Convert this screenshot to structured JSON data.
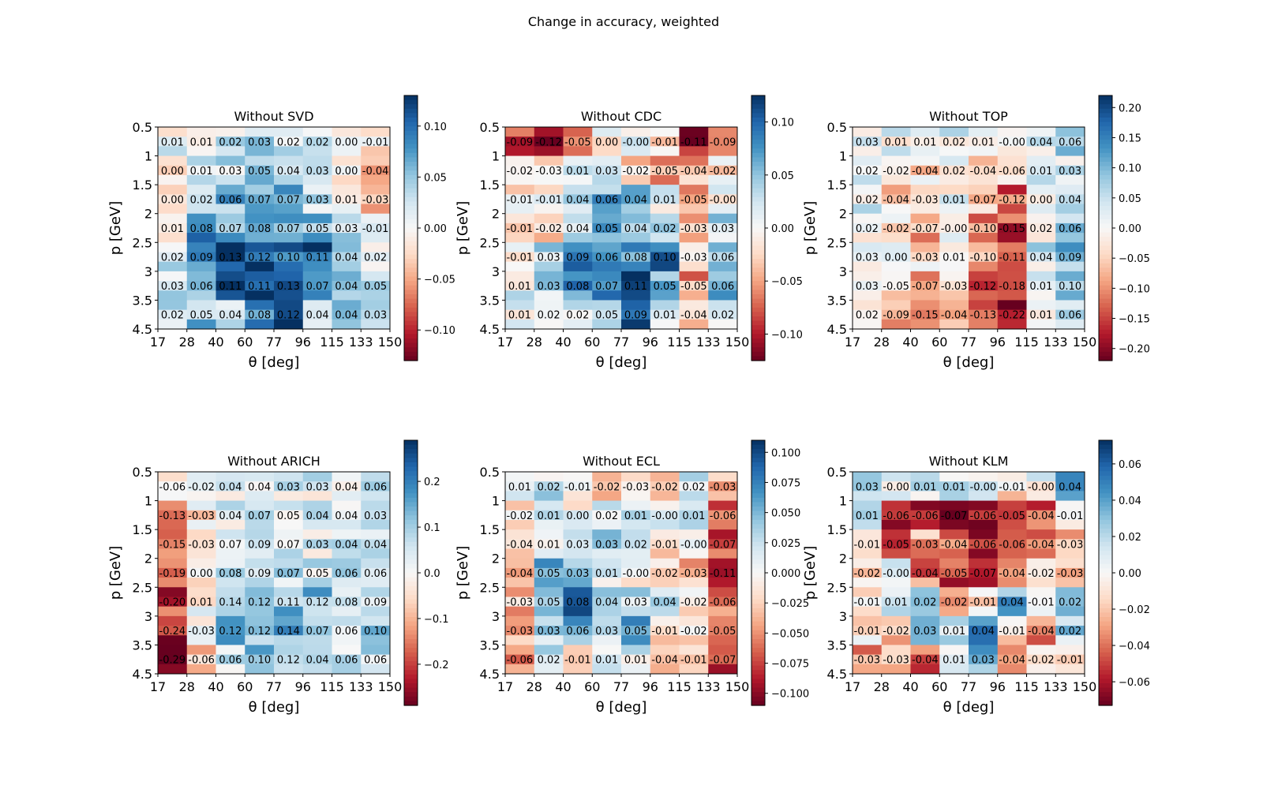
{
  "figure_title": "Change in accuracy, weighted",
  "chart_data": [
    {
      "type": "heatmap",
      "title": "Without SVD",
      "xlabel": "θ [deg]",
      "ylabel": "p [GeV]",
      "x_ticks": [
        "17",
        "28",
        "40",
        "60",
        "77",
        "96",
        "115",
        "133",
        "150"
      ],
      "y_ticks": [
        "0.5",
        "1",
        "1.5",
        "2",
        "2.5",
        "3",
        "3.5",
        "4.5"
      ],
      "values": [
        [
          0.01,
          0.01,
          0.02,
          0.03,
          0.02,
          0.02,
          0.0,
          -0.01
        ],
        [
          0.0,
          0.01,
          0.03,
          0.05,
          0.04,
          0.03,
          0.0,
          -0.04
        ],
        [
          0.0,
          0.02,
          0.06,
          0.07,
          0.07,
          0.03,
          0.01,
          -0.03
        ],
        [
          0.01,
          0.08,
          0.07,
          0.08,
          0.07,
          0.05,
          0.03,
          -0.01
        ],
        [
          0.02,
          0.09,
          0.13,
          0.12,
          0.1,
          0.11,
          0.04,
          0.02
        ],
        [
          0.03,
          0.06,
          0.11,
          0.11,
          0.13,
          0.07,
          0.04,
          0.05
        ],
        [
          0.02,
          0.05,
          0.04,
          0.08,
          0.12,
          0.04,
          0.04,
          0.03
        ]
      ],
      "labels": [
        [
          "0.01",
          "0.01",
          "0.02",
          "0.03",
          "0.02",
          "0.02",
          "0.00",
          "-0.01"
        ],
        [
          "0.00",
          "0.01",
          "0.03",
          "0.05",
          "0.04",
          "0.03",
          "0.00",
          "-0.04"
        ],
        [
          "0.00",
          "0.02",
          "0.06",
          "0.07",
          "0.07",
          "0.03",
          "0.01",
          "-0.03"
        ],
        [
          "0.01",
          "0.08",
          "0.07",
          "0.08",
          "0.07",
          "0.05",
          "0.03",
          "-0.01"
        ],
        [
          "0.02",
          "0.09",
          "0.13",
          "0.12",
          "0.10",
          "0.11",
          "0.04",
          "0.02"
        ],
        [
          "0.03",
          "0.06",
          "0.11",
          "0.11",
          "0.13",
          "0.07",
          "0.04",
          "0.05"
        ],
        [
          "0.02",
          "0.05",
          "0.04",
          "0.08",
          "0.12",
          "0.04",
          "0.04",
          "0.03"
        ]
      ],
      "vlim": [
        -0.13,
        0.13
      ],
      "cbar_ticks": [
        -0.1,
        -0.05,
        0.0,
        0.05,
        0.1
      ],
      "cbar_labels": [
        "−0.10",
        "−0.05",
        "0.00",
        "0.05",
        "0.10"
      ]
    },
    {
      "type": "heatmap",
      "title": "Without CDC",
      "xlabel": "θ [deg]",
      "ylabel": "p [GeV]",
      "x_ticks": [
        "17",
        "28",
        "40",
        "60",
        "77",
        "96",
        "115",
        "133",
        "150"
      ],
      "y_ticks": [
        "0.5",
        "1",
        "1.5",
        "2",
        "2.5",
        "3",
        "3.5",
        "4.5"
      ],
      "values": [
        [
          -0.09,
          -0.12,
          -0.05,
          0.0,
          -0.0,
          -0.01,
          -0.11,
          -0.09
        ],
        [
          -0.02,
          -0.03,
          0.01,
          0.03,
          -0.02,
          -0.05,
          -0.04,
          -0.02
        ],
        [
          -0.01,
          -0.01,
          0.04,
          0.06,
          0.04,
          0.01,
          -0.05,
          -0.0
        ],
        [
          -0.01,
          -0.02,
          0.04,
          0.05,
          0.04,
          0.02,
          -0.03,
          0.03
        ],
        [
          -0.01,
          0.03,
          0.09,
          0.06,
          0.08,
          0.1,
          -0.03,
          0.06
        ],
        [
          0.01,
          0.03,
          0.08,
          0.07,
          0.11,
          0.05,
          -0.05,
          0.06
        ],
        [
          0.01,
          0.02,
          0.02,
          0.05,
          0.09,
          0.01,
          -0.04,
          0.02
        ]
      ],
      "labels": [
        [
          "-0.09",
          "-0.12",
          "-0.05",
          "0.00",
          "-0.00",
          "-0.01",
          "-0.11",
          "-0.09"
        ],
        [
          "-0.02",
          "-0.03",
          "0.01",
          "0.03",
          "-0.02",
          "-0.05",
          "-0.04",
          "-0.02"
        ],
        [
          "-0.01",
          "-0.01",
          "0.04",
          "0.06",
          "0.04",
          "0.01",
          "-0.05",
          "-0.00"
        ],
        [
          "-0.01",
          "-0.02",
          "0.04",
          "0.05",
          "0.04",
          "0.02",
          "-0.03",
          "0.03"
        ],
        [
          "-0.01",
          "0.03",
          "0.09",
          "0.06",
          "0.08",
          "0.10",
          "-0.03",
          "0.06"
        ],
        [
          "0.01",
          "0.03",
          "0.08",
          "0.07",
          "0.11",
          "0.05",
          "-0.05",
          "0.06"
        ],
        [
          "0.01",
          "0.02",
          "0.02",
          "0.05",
          "0.09",
          "0.01",
          "-0.04",
          "0.02"
        ]
      ],
      "vlim": [
        -0.125,
        0.125
      ],
      "cbar_ticks": [
        -0.1,
        -0.05,
        0.0,
        0.05,
        0.1
      ],
      "cbar_labels": [
        "−0.10",
        "−0.05",
        "0.00",
        "0.05",
        "0.10"
      ]
    },
    {
      "type": "heatmap",
      "title": "Without TOP",
      "xlabel": "θ [deg]",
      "ylabel": "p [GeV]",
      "x_ticks": [
        "17",
        "28",
        "40",
        "60",
        "77",
        "96",
        "115",
        "133",
        "150"
      ],
      "y_ticks": [
        "0.5",
        "1",
        "1.5",
        "2",
        "2.5",
        "3",
        "3.5",
        "4.5"
      ],
      "values": [
        [
          0.03,
          0.01,
          0.01,
          0.02,
          0.01,
          -0.0,
          0.04,
          0.06
        ],
        [
          0.02,
          -0.02,
          -0.04,
          0.02,
          -0.04,
          -0.06,
          0.01,
          0.03
        ],
        [
          0.02,
          -0.04,
          -0.03,
          0.01,
          -0.07,
          -0.12,
          0.0,
          0.04
        ],
        [
          0.02,
          -0.02,
          -0.07,
          -0.0,
          -0.1,
          -0.15,
          0.02,
          0.06
        ],
        [
          0.03,
          0.0,
          -0.03,
          0.01,
          -0.1,
          -0.11,
          0.04,
          0.09
        ],
        [
          0.03,
          -0.05,
          -0.07,
          -0.03,
          -0.12,
          -0.18,
          0.01,
          0.1
        ],
        [
          0.02,
          -0.09,
          -0.15,
          -0.04,
          -0.13,
          -0.22,
          0.01,
          0.06
        ]
      ],
      "labels": [
        [
          "0.03",
          "0.01",
          "0.01",
          "0.02",
          "0.01",
          "-0.00",
          "0.04",
          "0.06"
        ],
        [
          "0.02",
          "-0.02",
          "-0.04",
          "0.02",
          "-0.04",
          "-0.06",
          "0.01",
          "0.03"
        ],
        [
          "0.02",
          "-0.04",
          "-0.03",
          "0.01",
          "-0.07",
          "-0.12",
          "0.00",
          "0.04"
        ],
        [
          "0.02",
          "-0.02",
          "-0.07",
          "-0.00",
          "-0.10",
          "-0.15",
          "0.02",
          "0.06"
        ],
        [
          "0.03",
          "0.00",
          "-0.03",
          "0.01",
          "-0.10",
          "-0.11",
          "0.04",
          "0.09"
        ],
        [
          "0.03",
          "-0.05",
          "-0.07",
          "-0.03",
          "-0.12",
          "-0.18",
          "0.01",
          "0.10"
        ],
        [
          "0.02",
          "-0.09",
          "-0.15",
          "-0.04",
          "-0.13",
          "-0.22",
          "0.01",
          "0.06"
        ]
      ],
      "vlim": [
        -0.22,
        0.22
      ],
      "cbar_ticks": [
        -0.2,
        -0.15,
        -0.1,
        -0.05,
        0.0,
        0.05,
        0.1,
        0.15,
        0.2
      ],
      "cbar_labels": [
        "−0.20",
        "−0.15",
        "−0.10",
        "−0.05",
        "0.00",
        "0.05",
        "0.10",
        "0.15",
        "0.20"
      ]
    },
    {
      "type": "heatmap",
      "title": "Without ARICH",
      "xlabel": "θ [deg]",
      "ylabel": "p [GeV]",
      "x_ticks": [
        "17",
        "28",
        "40",
        "60",
        "77",
        "96",
        "115",
        "133",
        "150"
      ],
      "y_ticks": [
        "0.5",
        "1",
        "1.5",
        "2",
        "2.5",
        "3",
        "3.5",
        "4.5"
      ],
      "values": [
        [
          -0.06,
          -0.02,
          0.04,
          0.04,
          0.03,
          0.03,
          0.04,
          0.06
        ],
        [
          -0.13,
          -0.03,
          0.04,
          0.07,
          0.05,
          0.04,
          0.04,
          0.03
        ],
        [
          -0.15,
          -0.03,
          0.07,
          0.09,
          0.07,
          0.03,
          0.04,
          0.04
        ],
        [
          -0.19,
          0.0,
          0.08,
          0.09,
          0.07,
          0.05,
          0.06,
          0.06
        ],
        [
          -0.2,
          0.01,
          0.14,
          0.12,
          0.11,
          0.12,
          0.08,
          0.09
        ],
        [
          -0.24,
          -0.03,
          0.12,
          0.12,
          0.14,
          0.07,
          0.06,
          0.1
        ],
        [
          -0.29,
          -0.06,
          0.06,
          0.1,
          0.12,
          0.04,
          0.06,
          0.06
        ]
      ],
      "labels": [
        [
          "-0.06",
          "-0.02",
          "0.04",
          "0.04",
          "0.03",
          "0.03",
          "0.04",
          "0.06"
        ],
        [
          "-0.13",
          "-0.03",
          "0.04",
          "0.07",
          "0.05",
          "0.04",
          "0.04",
          "0.03"
        ],
        [
          "-0.15",
          "-0.03",
          "0.07",
          "0.09",
          "0.07",
          "0.03",
          "0.04",
          "0.04"
        ],
        [
          "-0.19",
          "0.00",
          "0.08",
          "0.09",
          "0.07",
          "0.05",
          "0.06",
          "0.06"
        ],
        [
          "-0.20",
          "0.01",
          "0.14",
          "0.12",
          "0.11",
          "0.12",
          "0.08",
          "0.09"
        ],
        [
          "-0.24",
          "-0.03",
          "0.12",
          "0.12",
          "0.14",
          "0.07",
          "0.06",
          "0.10"
        ],
        [
          "-0.29",
          "-0.06",
          "0.06",
          "0.10",
          "0.12",
          "0.04",
          "0.06",
          "0.06"
        ]
      ],
      "vlim": [
        -0.29,
        0.29
      ],
      "cbar_ticks": [
        -0.2,
        -0.1,
        0.0,
        0.1,
        0.2
      ],
      "cbar_labels": [
        "−0.2",
        "−0.1",
        "0.0",
        "0.1",
        "0.2"
      ]
    },
    {
      "type": "heatmap",
      "title": "Without ECL",
      "xlabel": "θ [deg]",
      "ylabel": "p [GeV]",
      "x_ticks": [
        "17",
        "28",
        "40",
        "60",
        "77",
        "96",
        "115",
        "133",
        "150"
      ],
      "y_ticks": [
        "0.5",
        "1",
        "1.5",
        "2",
        "2.5",
        "3",
        "3.5",
        "4.5"
      ],
      "values": [
        [
          0.01,
          0.02,
          -0.01,
          -0.02,
          -0.03,
          -0.02,
          0.02,
          -0.03
        ],
        [
          -0.02,
          0.01,
          0.0,
          0.02,
          0.01,
          -0.0,
          0.01,
          -0.06
        ],
        [
          -0.04,
          0.01,
          0.03,
          0.03,
          0.02,
          -0.01,
          -0.0,
          -0.07
        ],
        [
          -0.04,
          0.05,
          0.03,
          0.01,
          -0.0,
          -0.02,
          -0.03,
          -0.11
        ],
        [
          -0.03,
          0.05,
          0.08,
          0.04,
          0.03,
          0.04,
          -0.02,
          -0.06
        ],
        [
          -0.03,
          0.03,
          0.06,
          0.03,
          0.05,
          -0.01,
          -0.02,
          -0.05
        ],
        [
          -0.06,
          0.02,
          -0.01,
          0.01,
          0.01,
          -0.04,
          -0.01,
          -0.07
        ]
      ],
      "labels": [
        [
          "0.01",
          "0.02",
          "-0.01",
          "-0.02",
          "-0.03",
          "-0.02",
          "0.02",
          "-0.03"
        ],
        [
          "-0.02",
          "0.01",
          "0.00",
          "0.02",
          "0.01",
          "-0.00",
          "0.01",
          "-0.06"
        ],
        [
          "-0.04",
          "0.01",
          "0.03",
          "0.03",
          "0.02",
          "-0.01",
          "-0.00",
          "-0.07"
        ],
        [
          "-0.04",
          "0.05",
          "0.03",
          "0.01",
          "-0.00",
          "-0.02",
          "-0.03",
          "-0.11"
        ],
        [
          "-0.03",
          "0.05",
          "0.08",
          "0.04",
          "0.03",
          "0.04",
          "-0.02",
          "-0.06"
        ],
        [
          "-0.03",
          "0.03",
          "0.06",
          "0.03",
          "0.05",
          "-0.01",
          "-0.02",
          "-0.05"
        ],
        [
          "-0.06",
          "0.02",
          "-0.01",
          "0.01",
          "0.01",
          "-0.04",
          "-0.01",
          "-0.07"
        ]
      ],
      "vlim": [
        -0.11,
        0.11
      ],
      "cbar_ticks": [
        -0.1,
        -0.075,
        -0.05,
        -0.025,
        0.0,
        0.025,
        0.05,
        0.075,
        0.1
      ],
      "cbar_labels": [
        "−0.100",
        "−0.075",
        "−0.050",
        "−0.025",
        "0.000",
        "0.025",
        "0.050",
        "0.075",
        "0.100"
      ]
    },
    {
      "type": "heatmap",
      "title": "Without KLM",
      "xlabel": "θ [deg]",
      "ylabel": "p [GeV]",
      "x_ticks": [
        "17",
        "28",
        "40",
        "60",
        "77",
        "96",
        "115",
        "133",
        "150"
      ],
      "y_ticks": [
        "0.5",
        "1",
        "1.5",
        "2",
        "2.5",
        "3",
        "3.5",
        "4.5"
      ],
      "values": [
        [
          0.03,
          -0.0,
          0.01,
          0.01,
          -0.0,
          -0.01,
          -0.0,
          0.04
        ],
        [
          0.01,
          -0.06,
          -0.06,
          -0.07,
          -0.06,
          -0.05,
          -0.04,
          -0.01
        ],
        [
          -0.01,
          -0.05,
          -0.03,
          -0.04,
          -0.06,
          -0.06,
          -0.04,
          -0.03
        ],
        [
          -0.02,
          -0.0,
          -0.04,
          -0.05,
          -0.07,
          -0.04,
          -0.02,
          -0.03
        ],
        [
          -0.01,
          0.01,
          0.02,
          -0.02,
          -0.01,
          0.04,
          -0.01,
          0.02
        ],
        [
          -0.01,
          -0.02,
          0.03,
          0.01,
          0.04,
          -0.01,
          -0.04,
          0.02
        ],
        [
          -0.03,
          -0.03,
          -0.04,
          0.01,
          0.03,
          -0.04,
          -0.02,
          -0.01
        ]
      ],
      "labels": [
        [
          "0.03",
          "-0.00",
          "0.01",
          "0.01",
          "-0.00",
          "-0.01",
          "-0.00",
          "0.04"
        ],
        [
          "0.01",
          "-0.06",
          "-0.06",
          "-0.07",
          "-0.06",
          "-0.05",
          "-0.04",
          "-0.01"
        ],
        [
          "-0.01",
          "-0.05",
          "-0.03",
          "-0.04",
          "-0.06",
          "-0.06",
          "-0.04",
          "-0.03"
        ],
        [
          "-0.02",
          "-0.00",
          "-0.04",
          "-0.05",
          "-0.07",
          "-0.04",
          "-0.02",
          "-0.03"
        ],
        [
          "-0.01",
          "0.01",
          "0.02",
          "-0.02",
          "-0.01",
          "0.04",
          "-0.01",
          "0.02"
        ],
        [
          "-0.01",
          "-0.02",
          "0.03",
          "0.01",
          "0.04",
          "-0.01",
          "-0.04",
          "0.02"
        ],
        [
          "-0.03",
          "-0.03",
          "-0.04",
          "0.01",
          "0.03",
          "-0.04",
          "-0.02",
          "-0.01"
        ]
      ],
      "vlim": [
        -0.073,
        0.073
      ],
      "cbar_ticks": [
        -0.06,
        -0.04,
        -0.02,
        0.0,
        0.02,
        0.04,
        0.06
      ],
      "cbar_labels": [
        "−0.06",
        "−0.04",
        "−0.02",
        "0.00",
        "0.02",
        "0.04",
        "0.06"
      ]
    }
  ]
}
